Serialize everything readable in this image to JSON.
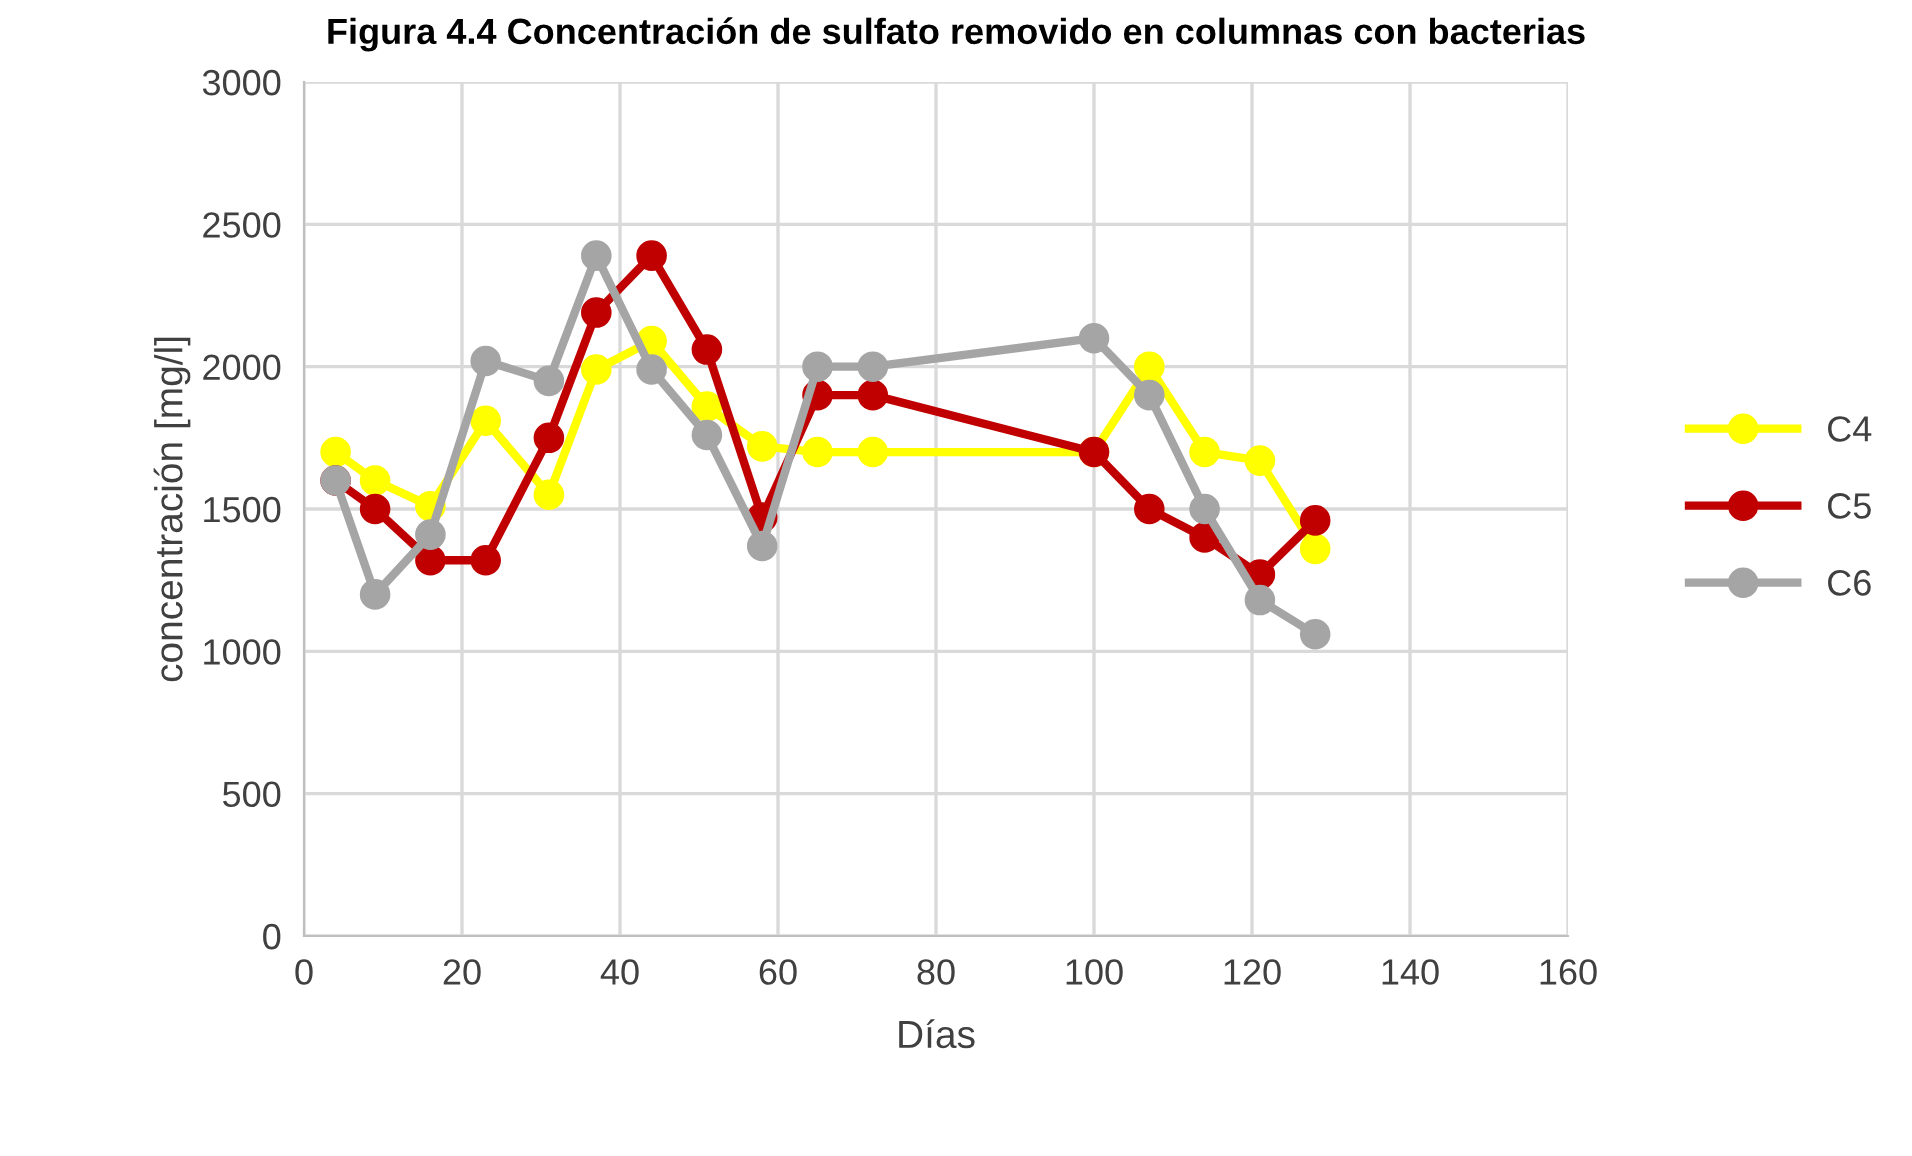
{
  "chart_data": {
    "type": "line",
    "title": "Figura 4.4 Concentración de sulfato removido en columnas con bacterias",
    "xlabel": "Días",
    "ylabel": "concentración [mg/l]",
    "x": [
      4,
      9,
      16,
      23,
      31,
      37,
      44,
      51,
      58,
      65,
      72,
      100,
      107,
      114,
      121,
      128
    ],
    "series": [
      {
        "name": "C4",
        "color": "#ffff00",
        "values": [
          1700,
          1600,
          1510,
          1810,
          1550,
          1990,
          2090,
          1860,
          1720,
          1700,
          1700,
          1700,
          2000,
          1700,
          1670,
          1360
        ]
      },
      {
        "name": "C5",
        "color": "#c00000",
        "values": [
          1600,
          1500,
          1320,
          1320,
          1750,
          2190,
          2390,
          2060,
          1470,
          1900,
          1900,
          1700,
          1500,
          1400,
          1270,
          1460
        ]
      },
      {
        "name": "C6",
        "color": "#a5a5a5",
        "values": [
          1600,
          1200,
          1410,
          2020,
          1950,
          2390,
          1990,
          1760,
          1370,
          2000,
          2000,
          2100,
          1900,
          1500,
          1180,
          1060
        ]
      }
    ],
    "xlim": [
      0,
      160
    ],
    "xticks": [
      0,
      20,
      40,
      60,
      80,
      100,
      120,
      140,
      160
    ],
    "ylim": [
      0,
      3000
    ],
    "yticks": [
      0,
      500,
      1000,
      1500,
      2000,
      2500,
      3000
    ],
    "grid": true,
    "legend": "right",
    "marker": "circle",
    "line_style": "solid"
  }
}
